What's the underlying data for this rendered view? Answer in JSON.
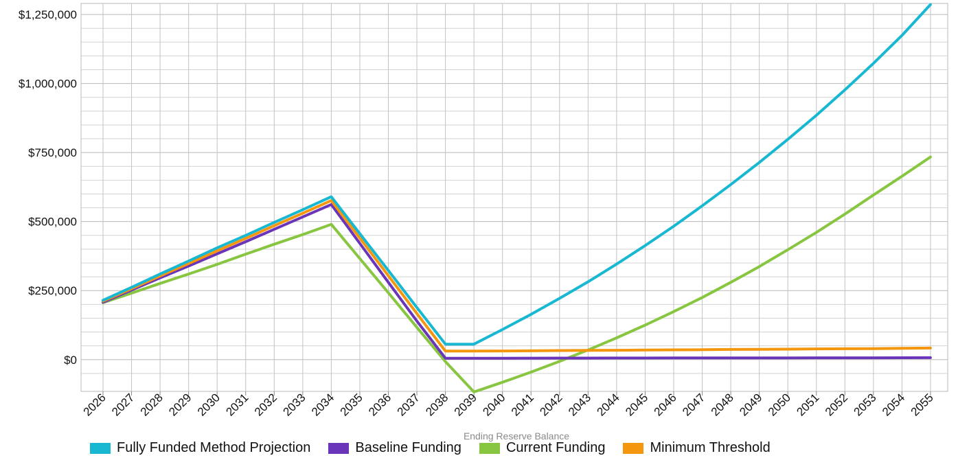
{
  "chart_data": {
    "type": "line",
    "title": "",
    "xlabel": "Ending Reserve Balance",
    "ylabel": "",
    "ylim": [
      -115000,
      1290000
    ],
    "yticks": [
      0,
      250000,
      500000,
      750000,
      1000000,
      1250000
    ],
    "ytick_labels": [
      "$0",
      "$250,000",
      "$500,000",
      "$750,000",
      "$1,000,000",
      "$1,250,000"
    ],
    "grid": true,
    "legend_position": "bottom",
    "x": [
      "2026",
      "2027",
      "2028",
      "2029",
      "2030",
      "2031",
      "2032",
      "2033",
      "2034",
      "2035",
      "2036",
      "2037",
      "2038",
      "2039",
      "2040",
      "2041",
      "2042",
      "2043",
      "2044",
      "2045",
      "2046",
      "2047",
      "2048",
      "2049",
      "2050",
      "2051",
      "2052",
      "2053",
      "2054",
      "2055"
    ],
    "series": [
      {
        "name": "Fully Funded Method Projection",
        "color": "#19b8d2",
        "values": [
          215000,
          262000,
          310000,
          357000,
          405000,
          450000,
          497000,
          543000,
          590000,
          456000,
          323000,
          189000,
          56000,
          56000,
          109000,
          164000,
          222000,
          282000,
          346000,
          413000,
          483000,
          557000,
          634000,
          714000,
          798000,
          885000,
          977000,
          1073000,
          1174000,
          1286000
        ]
      },
      {
        "name": "Baseline Funding",
        "color": "#6a35b8",
        "values": [
          208000,
          252000,
          296000,
          339000,
          383000,
          427000,
          472000,
          517000,
          562000,
          421000,
          280000,
          140000,
          5000,
          5000,
          5200,
          5400,
          5600,
          5700,
          5800,
          5900,
          6000,
          6100,
          6200,
          6300,
          6400,
          6500,
          6600,
          6700,
          6800,
          7000
        ]
      },
      {
        "name": "Current Funding",
        "color": "#88c540",
        "values": [
          206000,
          241000,
          276000,
          310000,
          345000,
          382000,
          418000,
          453000,
          490000,
          366000,
          242000,
          117000,
          -7000,
          -117000,
          -82000,
          -45000,
          -6000,
          35000,
          79000,
          125000,
          174000,
          225000,
          280000,
          337000,
          398000,
          461000,
          527000,
          596000,
          664000,
          734000
        ]
      },
      {
        "name": "Minimum Threshold",
        "color": "#f5960f",
        "values": [
          212000,
          257000,
          303000,
          348000,
          394000,
          439000,
          485000,
          530000,
          576000,
          440000,
          304000,
          167000,
          31000,
          31000,
          31500,
          32000,
          33000,
          33500,
          34000,
          35000,
          35500,
          36000,
          37000,
          37500,
          38000,
          39000,
          39500,
          40000,
          41000,
          42000
        ]
      }
    ]
  }
}
